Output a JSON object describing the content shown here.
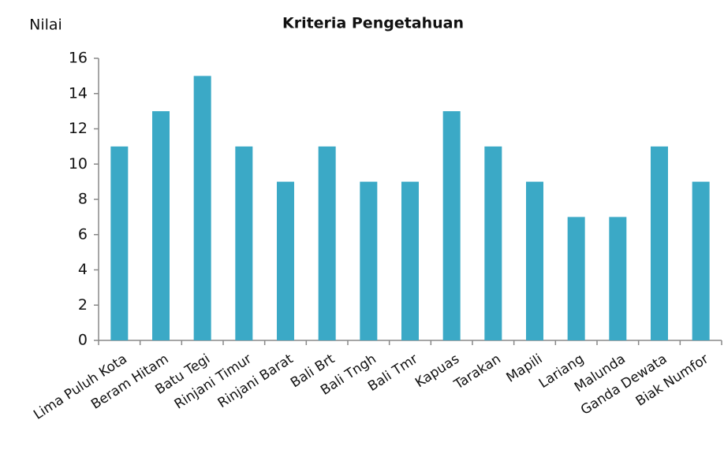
{
  "chart_data": {
    "type": "bar",
    "title": "Kriteria Pengetahuan",
    "y_label": "Nilai",
    "categories": [
      "Lima Puluh Kota",
      "Beram Hitam",
      "Batu Tegi",
      "Rinjani Timur",
      "Rinjani Barat",
      "Bali Brt",
      "Bali Tngh",
      "Bali Tmr",
      "Kapuas",
      "Tarakan",
      "Mapili",
      "Lariang",
      "Malunda",
      "Ganda Dewata",
      "Biak Numfor"
    ],
    "values": [
      11,
      13,
      15,
      11,
      9,
      11,
      9,
      9,
      13,
      11,
      9,
      7,
      7,
      11,
      9
    ],
    "color": "#3ba9c6",
    "ylim": [
      0,
      16
    ],
    "yticks": [
      0,
      2,
      4,
      6,
      8,
      10,
      12,
      14,
      16
    ],
    "grid": false
  }
}
